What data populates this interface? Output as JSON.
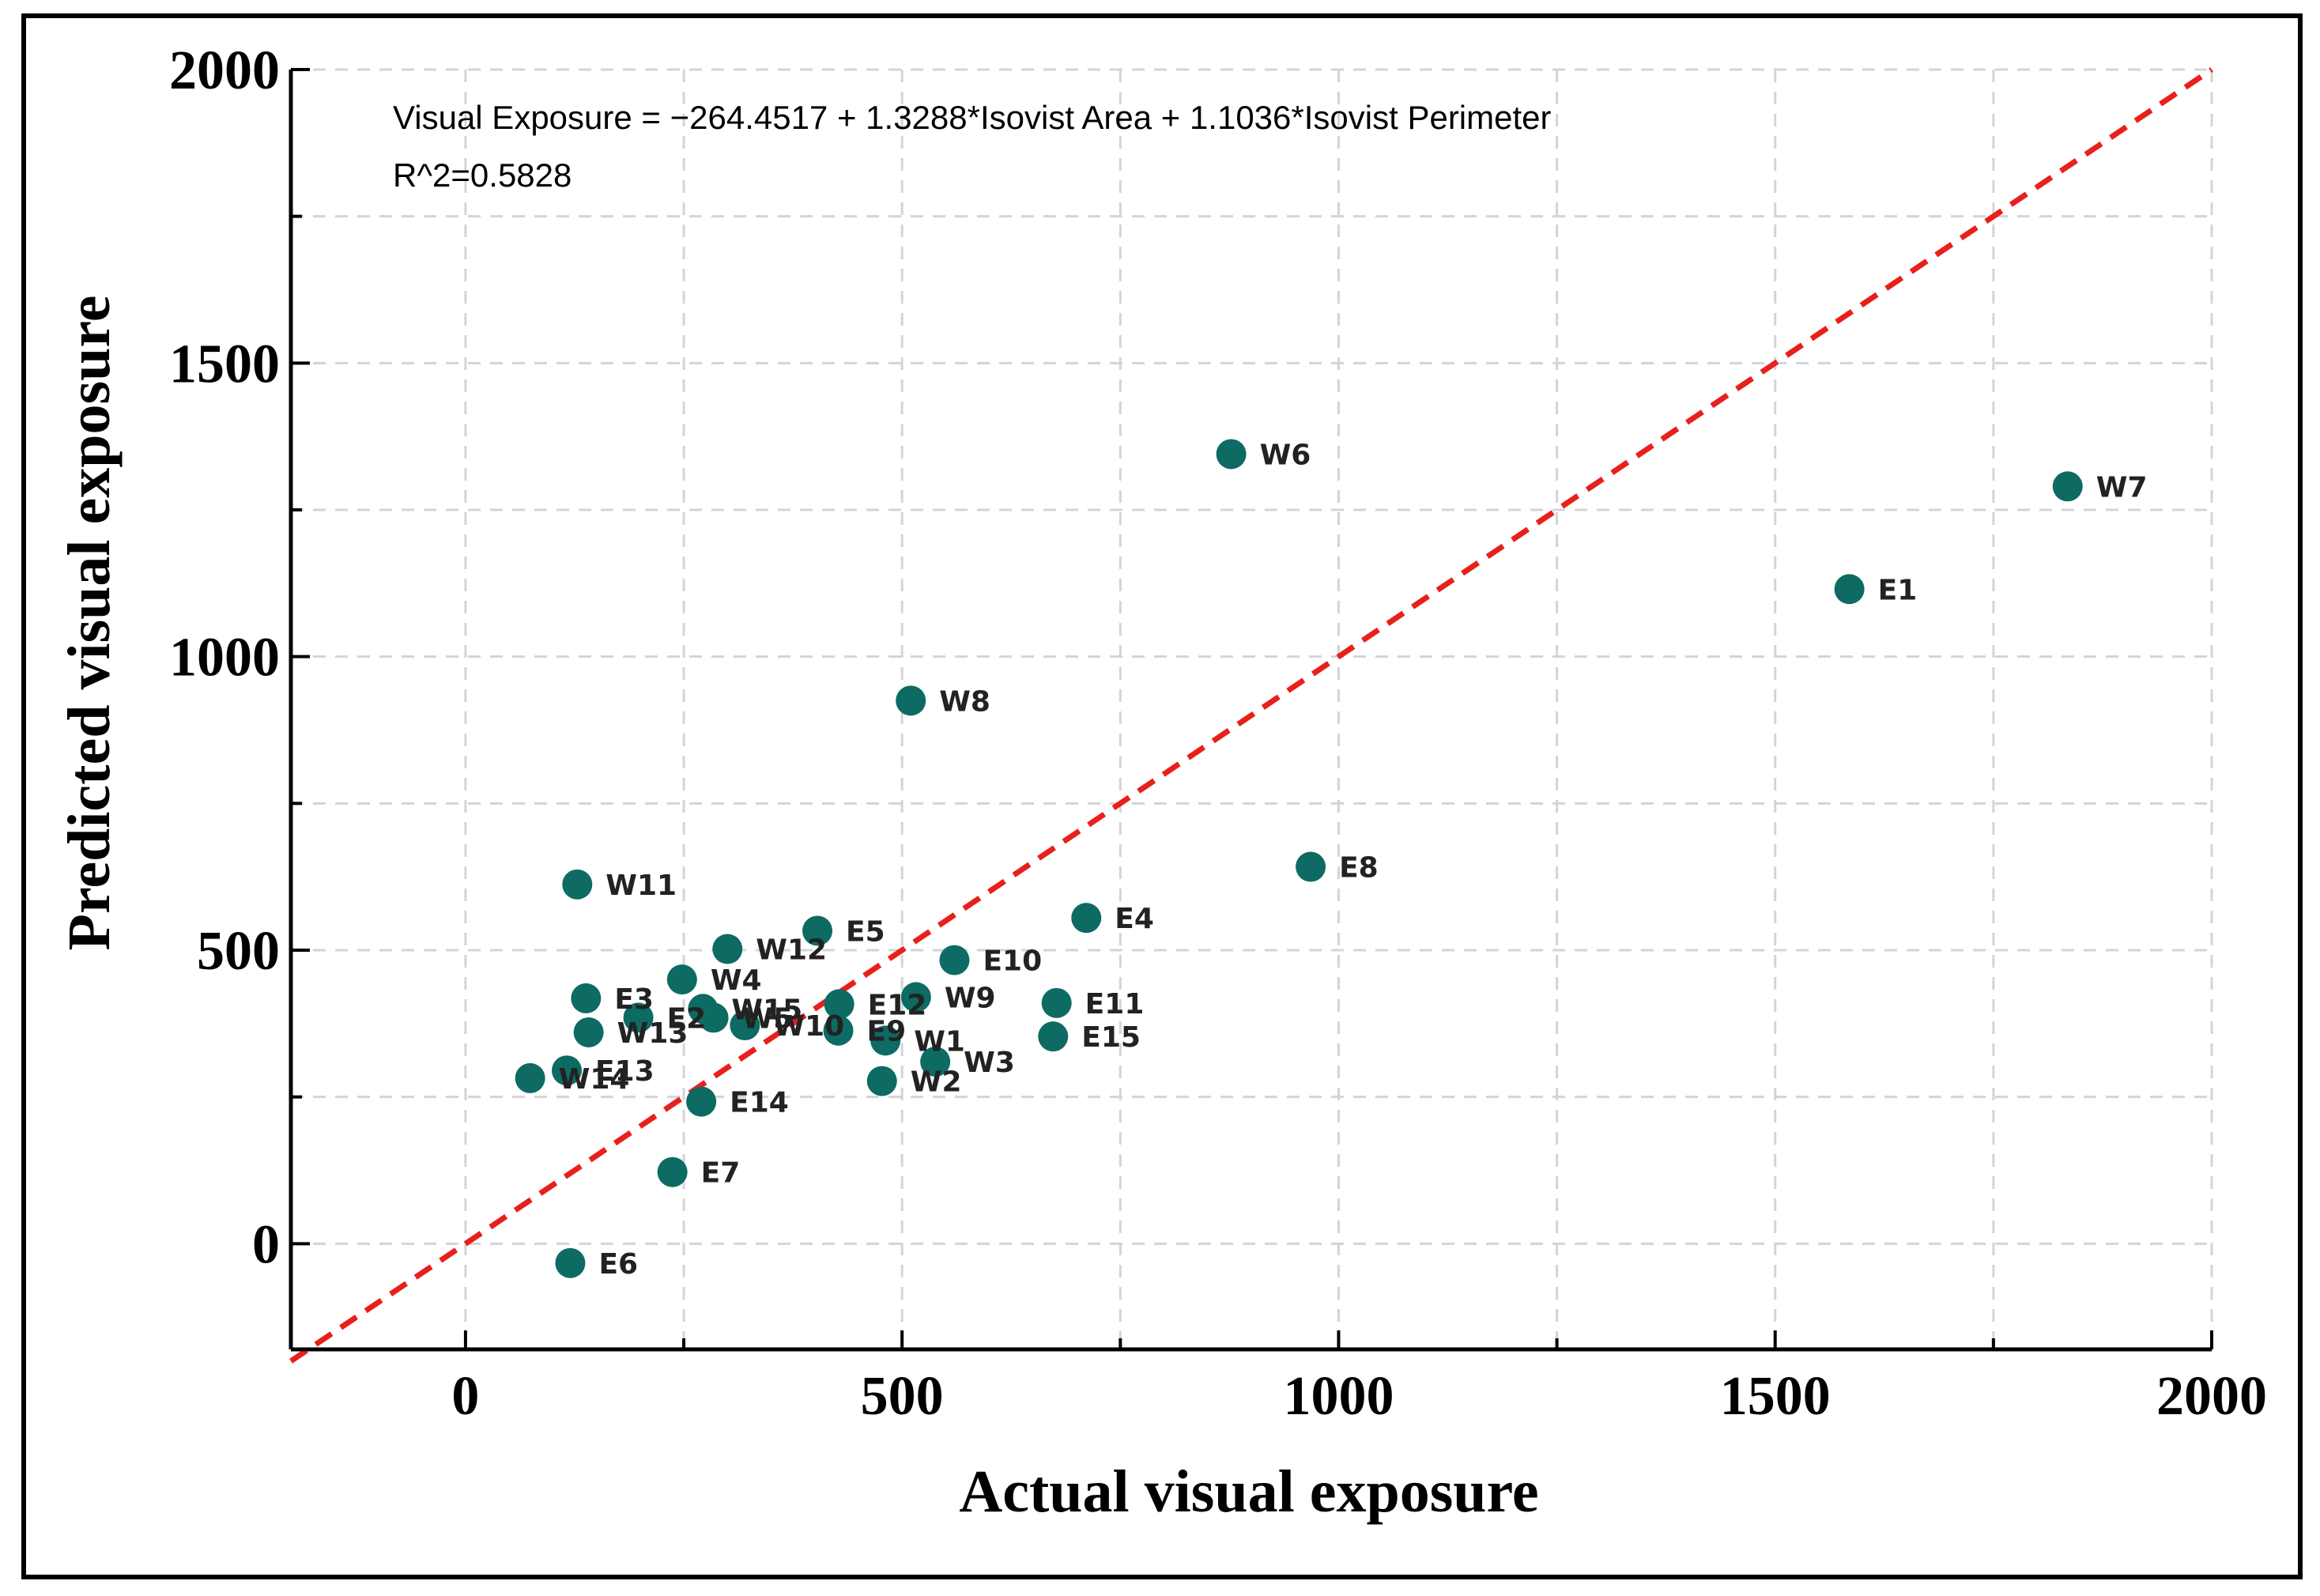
{
  "chart_data": {
    "type": "scatter",
    "xlabel": "Actual visual exposure",
    "ylabel": "Predicted visual exposure",
    "xlim": [
      -200,
      2000
    ],
    "ylim": [
      -180,
      2000
    ],
    "x_ticks": [
      0,
      500,
      1000,
      1500,
      2000
    ],
    "y_ticks": [
      0,
      500,
      1000,
      1500,
      2000
    ],
    "x_tick_labels": [
      "0",
      "500",
      "1000",
      "1500",
      "2000"
    ],
    "y_tick_labels": [
      "0",
      "500",
      "1000",
      "1500",
      "2000"
    ],
    "grid": true,
    "equation": "Visual Exposure = −264.4517 + 1.3288*Isovist Area + 1.1036*Isovist Perimeter",
    "r_squared": "R^2=0.5828",
    "reference_line": {
      "style": "dashed",
      "color": "#e8201c",
      "from": [
        -200,
        -200
      ],
      "to": [
        2000,
        2000
      ]
    },
    "point_color": "#0d6b63",
    "points": [
      {
        "label": "W6",
        "x": 877,
        "y": 1345
      },
      {
        "label": "W7",
        "x": 1835,
        "y": 1290
      },
      {
        "label": "E1",
        "x": 1585,
        "y": 1115
      },
      {
        "label": "W8",
        "x": 510,
        "y": 925
      },
      {
        "label": "E8",
        "x": 968,
        "y": 642
      },
      {
        "label": "W11",
        "x": 128,
        "y": 612
      },
      {
        "label": "E4",
        "x": 711,
        "y": 555
      },
      {
        "label": "E5",
        "x": 403,
        "y": 533
      },
      {
        "label": "W12",
        "x": 300,
        "y": 502
      },
      {
        "label": "E10",
        "x": 560,
        "y": 483
      },
      {
        "label": "W4",
        "x": 248,
        "y": 450
      },
      {
        "label": "E3",
        "x": 138,
        "y": 418
      },
      {
        "label": "W9",
        "x": 516,
        "y": 420
      },
      {
        "label": "E12",
        "x": 428,
        "y": 408
      },
      {
        "label": "E11",
        "x": 677,
        "y": 410
      },
      {
        "label": "W15",
        "x": 272,
        "y": 400
      },
      {
        "label": "E2",
        "x": 198,
        "y": 385
      },
      {
        "label": "W5",
        "x": 284,
        "y": 385
      },
      {
        "label": "W10",
        "x": 320,
        "y": 372
      },
      {
        "label": "E9",
        "x": 427,
        "y": 363
      },
      {
        "label": "W13",
        "x": 141,
        "y": 360
      },
      {
        "label": "W1",
        "x": 481,
        "y": 346
      },
      {
        "label": "E15",
        "x": 673,
        "y": 353
      },
      {
        "label": "W3",
        "x": 538,
        "y": 310
      },
      {
        "label": "E13",
        "x": 116,
        "y": 295
      },
      {
        "label": "W14",
        "x": 74,
        "y": 282
      },
      {
        "label": "W2",
        "x": 477,
        "y": 277
      },
      {
        "label": "E14",
        "x": 270,
        "y": 242
      },
      {
        "label": "E7",
        "x": 237,
        "y": 122
      },
      {
        "label": "E6",
        "x": 120,
        "y": -33
      }
    ]
  }
}
